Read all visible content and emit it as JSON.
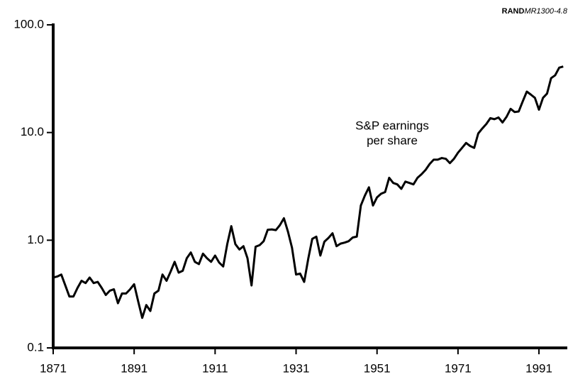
{
  "chart_data": {
    "type": "line",
    "source": {
      "org": "RAND",
      "id": "MR1300-4.8"
    },
    "annotation": [
      "S&P earnings",
      "per share"
    ],
    "x": [
      1871,
      1872,
      1873,
      1874,
      1875,
      1876,
      1877,
      1878,
      1879,
      1880,
      1881,
      1882,
      1883,
      1884,
      1885,
      1886,
      1887,
      1888,
      1889,
      1890,
      1891,
      1892,
      1893,
      1894,
      1895,
      1896,
      1897,
      1898,
      1899,
      1900,
      1901,
      1902,
      1903,
      1904,
      1905,
      1906,
      1907,
      1908,
      1909,
      1910,
      1911,
      1912,
      1913,
      1914,
      1915,
      1916,
      1917,
      1918,
      1919,
      1920,
      1921,
      1922,
      1923,
      1924,
      1925,
      1926,
      1927,
      1928,
      1929,
      1930,
      1931,
      1932,
      1933,
      1934,
      1935,
      1936,
      1937,
      1938,
      1939,
      1940,
      1941,
      1942,
      1943,
      1944,
      1945,
      1946,
      1947,
      1948,
      1949,
      1950,
      1951,
      1952,
      1953,
      1954,
      1955,
      1956,
      1957,
      1958,
      1959,
      1960,
      1961,
      1962,
      1963,
      1964,
      1965,
      1966,
      1967,
      1968,
      1969,
      1970,
      1971,
      1972,
      1973,
      1974,
      1975,
      1976,
      1977,
      1978,
      1979,
      1980,
      1981,
      1982,
      1983,
      1984,
      1985,
      1986,
      1987,
      1988,
      1989,
      1990,
      1991,
      1992,
      1993,
      1994,
      1995,
      1996,
      1997
    ],
    "series": [
      {
        "name": "S&P earnings per share",
        "color": "#000000",
        "values": [
          0.45,
          0.46,
          0.48,
          0.38,
          0.3,
          0.3,
          0.36,
          0.42,
          0.4,
          0.45,
          0.4,
          0.41,
          0.36,
          0.31,
          0.34,
          0.35,
          0.26,
          0.32,
          0.32,
          0.35,
          0.39,
          0.27,
          0.19,
          0.25,
          0.22,
          0.32,
          0.34,
          0.48,
          0.42,
          0.51,
          0.63,
          0.5,
          0.52,
          0.68,
          0.77,
          0.63,
          0.6,
          0.75,
          0.68,
          0.63,
          0.72,
          0.62,
          0.57,
          0.92,
          1.35,
          0.92,
          0.82,
          0.88,
          0.68,
          0.38,
          0.87,
          0.9,
          0.98,
          1.25,
          1.26,
          1.24,
          1.38,
          1.6,
          1.2,
          0.85,
          0.48,
          0.49,
          0.41,
          0.67,
          1.03,
          1.08,
          0.72,
          0.97,
          1.05,
          1.16,
          0.88,
          0.93,
          0.95,
          0.98,
          1.06,
          1.08,
          2.1,
          2.6,
          3.1,
          2.1,
          2.5,
          2.7,
          2.8,
          3.8,
          3.4,
          3.3,
          3.0,
          3.5,
          3.4,
          3.3,
          3.8,
          4.1,
          4.5,
          5.1,
          5.6,
          5.6,
          5.8,
          5.7,
          5.2,
          5.7,
          6.5,
          7.2,
          8.0,
          7.5,
          7.2,
          9.8,
          10.9,
          12.0,
          13.6,
          13.3,
          13.8,
          12.4,
          14.0,
          16.6,
          15.5,
          15.7,
          19.5,
          24.0,
          22.5,
          21.0,
          16.3,
          21.0,
          23.0,
          32.0,
          34.0,
          40.0,
          41.0
        ]
      }
    ],
    "xlim": [
      1871,
      1998
    ],
    "xticks": [
      1871,
      1891,
      1911,
      1931,
      1951,
      1971,
      1991
    ],
    "ylim": [
      0.1,
      100
    ],
    "ylog": true,
    "yticks": [
      {
        "value": 100,
        "label": "100.0"
      },
      {
        "value": 10,
        "label": "10.0"
      },
      {
        "value": 1,
        "label": "1.0"
      },
      0.1
    ]
  }
}
